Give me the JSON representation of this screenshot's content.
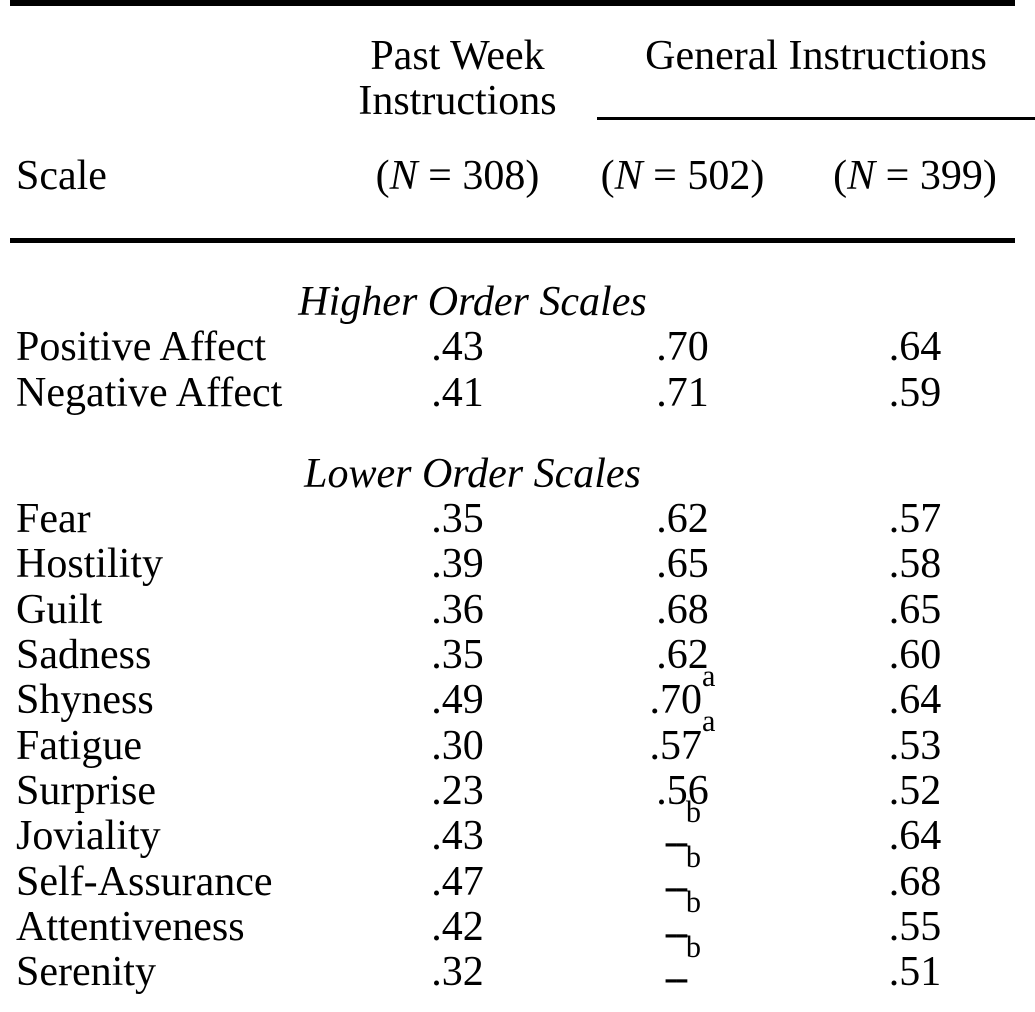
{
  "page": {
    "colors": {
      "text": "#000000",
      "background": "#ffffff"
    }
  },
  "table": {
    "spanners": {
      "past_week_line1": "Past Week",
      "past_week_line2": "Instructions",
      "general": "General Instructions"
    },
    "header": {
      "scale": "Scale",
      "n_cols": [
        {
          "open": "(",
          "var": "N",
          "rest": " = 308)"
        },
        {
          "open": "(",
          "var": "N",
          "rest": " = 502)"
        },
        {
          "open": "(",
          "var": "N",
          "rest": " = 399)"
        }
      ]
    },
    "sections": [
      {
        "title": "Higher Order Scales",
        "rows": [
          {
            "label": "Positive Affect",
            "past_week": ".43",
            "general_n502": ".70",
            "general_n399": ".64"
          },
          {
            "label": "Negative Affect",
            "past_week": ".41",
            "general_n502": ".71",
            "general_n399": ".59"
          }
        ]
      },
      {
        "title": "Lower Order Scales",
        "rows": [
          {
            "label": "Fear",
            "past_week": ".35",
            "general_n502": ".62",
            "general_n399": ".57"
          },
          {
            "label": "Hostility",
            "past_week": ".39",
            "general_n502": ".65",
            "general_n399": ".58"
          },
          {
            "label": "Guilt",
            "past_week": ".36",
            "general_n502": ".68",
            "general_n399": ".65"
          },
          {
            "label": "Sadness",
            "past_week": ".35",
            "general_n502": ".62",
            "general_n399": ".60"
          },
          {
            "label": "Shyness",
            "past_week": ".49",
            "general_n502": ".70",
            "general_n502_sup": "a",
            "general_n399": ".64"
          },
          {
            "label": "Fatigue",
            "past_week": ".30",
            "general_n502": ".57",
            "general_n502_sup": "a",
            "general_n399": ".53"
          },
          {
            "label": "Surprise",
            "past_week": ".23",
            "general_n502": ".56",
            "general_n399": ".52"
          },
          {
            "label": "Joviality",
            "past_week": ".43",
            "general_n502": "--",
            "general_n502_sup": "b",
            "general_n399": ".64"
          },
          {
            "label": "Self-Assurance",
            "past_week": ".47",
            "general_n502": "--",
            "general_n502_sup": "b",
            "general_n399": ".68"
          },
          {
            "label": "Attentiveness",
            "past_week": ".42",
            "general_n502": "--",
            "general_n502_sup": "b",
            "general_n399": ".55"
          },
          {
            "label": "Serenity",
            "past_week": ".32",
            "general_n502": "--",
            "general_n502_sup": "b",
            "general_n399": ".51"
          }
        ]
      }
    ]
  }
}
